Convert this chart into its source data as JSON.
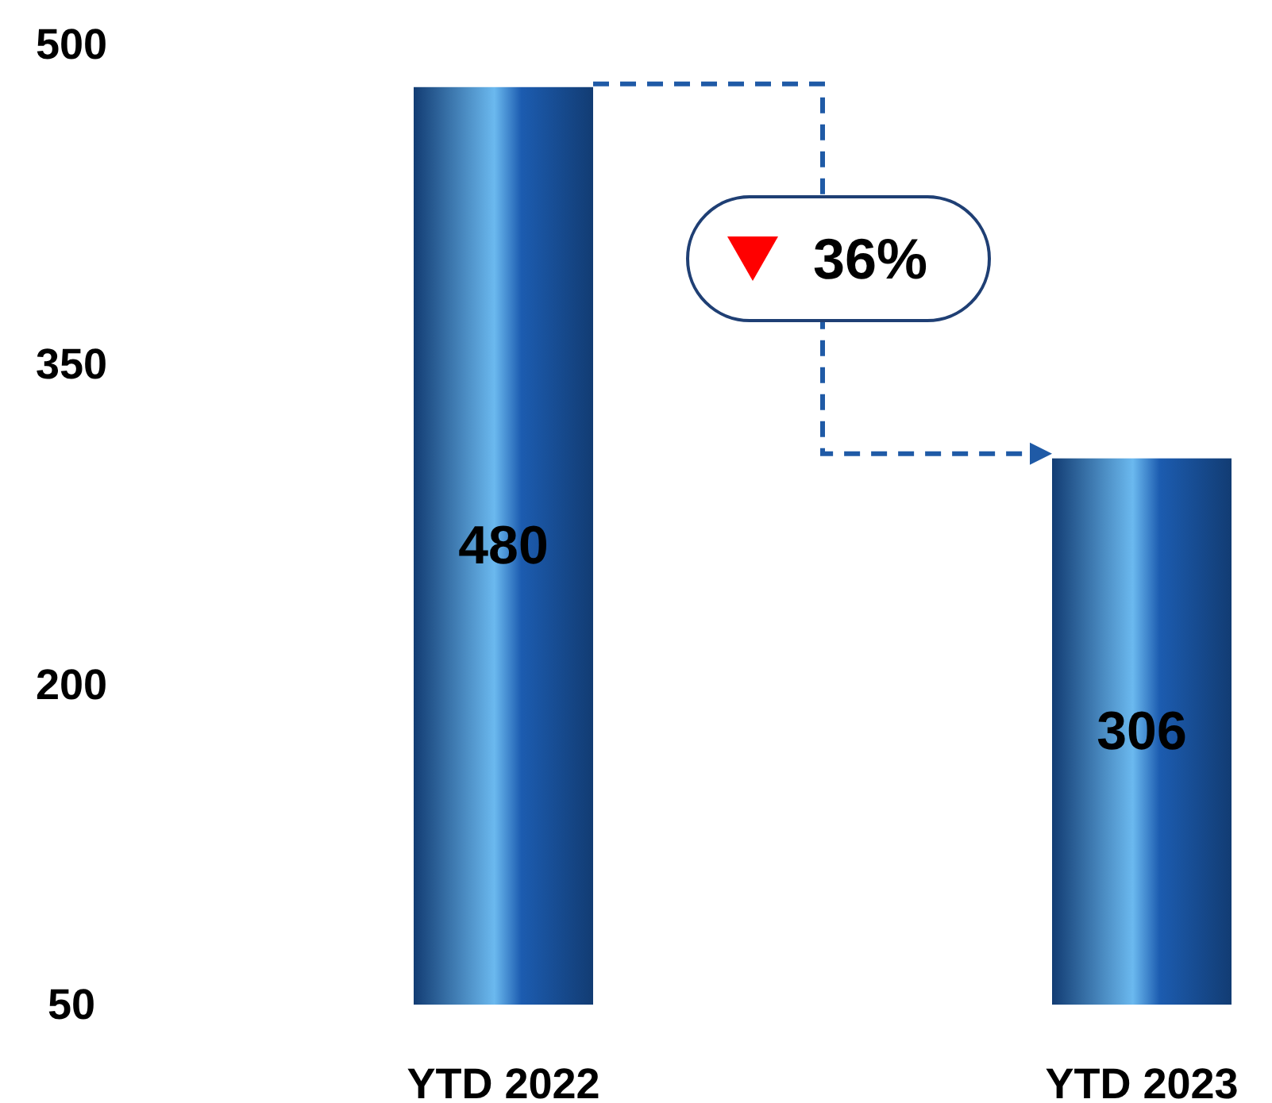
{
  "chart_data": {
    "type": "bar",
    "categories": [
      "YTD 2022",
      "YTD 2023"
    ],
    "values": [
      480,
      306
    ],
    "color": "#1c5cb0",
    "ylim": [
      50,
      500
    ],
    "yticks": [
      50,
      200,
      350,
      500
    ],
    "data_labels": true,
    "annotations": [
      "36%"
    ]
  }
}
